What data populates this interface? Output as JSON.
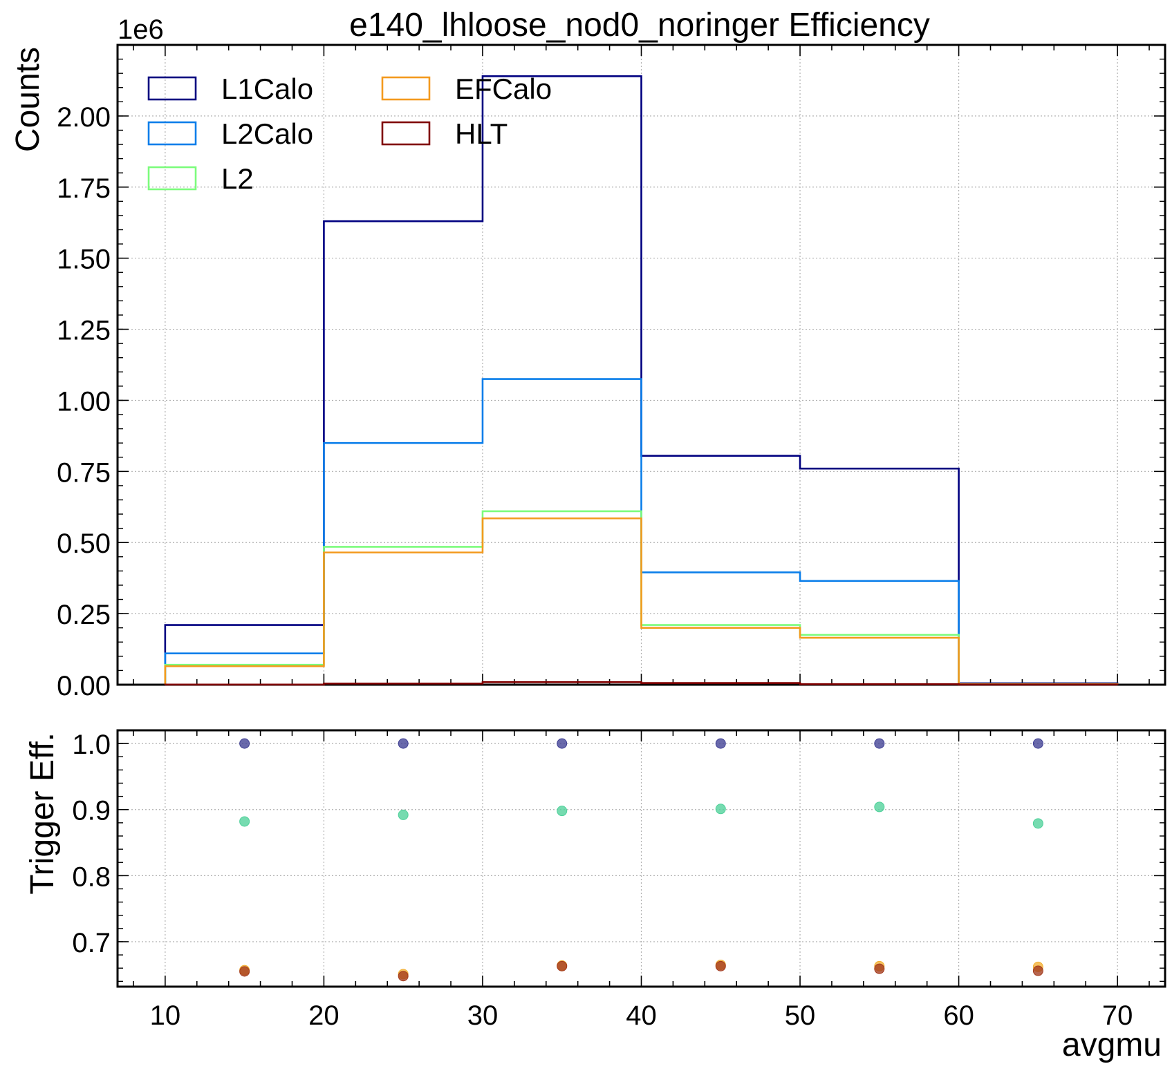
{
  "chart_data": [
    {
      "type": "histogram",
      "title": "e140_lhloose_nod0_noringer Efficiency",
      "ylabel": "Counts",
      "y_multiplier": "1e6",
      "xlim": [
        7,
        73
      ],
      "ylim": [
        0,
        2.25
      ],
      "y_ticks": [
        "0.00",
        "0.25",
        "0.50",
        "0.75",
        "1.00",
        "1.25",
        "1.50",
        "1.75",
        "2.00"
      ],
      "grid": true,
      "legend": "top-left, 2 columns",
      "bin_edges": [
        10,
        20,
        30,
        40,
        50,
        60,
        70
      ],
      "series": [
        {
          "name": "L1Calo",
          "color": "#000080",
          "values": [
            0.21,
            1.63,
            2.14,
            0.805,
            0.76,
            0.005
          ]
        },
        {
          "name": "L2Calo",
          "color": "#0a7eea",
          "values": [
            0.11,
            0.85,
            1.075,
            0.395,
            0.365,
            0.003
          ]
        },
        {
          "name": "L2",
          "color": "#7cfc7c",
          "values": [
            0.07,
            0.485,
            0.61,
            0.21,
            0.175,
            0.002
          ]
        },
        {
          "name": "EFCalo",
          "color": "#f39a1e",
          "values": [
            0.065,
            0.465,
            0.585,
            0.2,
            0.165,
            0.002
          ]
        },
        {
          "name": "HLT",
          "color": "#800000",
          "values": [
            0.0004,
            0.004,
            0.009,
            0.006,
            0.002,
            0.0005
          ]
        }
      ]
    },
    {
      "type": "scatter",
      "xlabel": "avgmu",
      "ylabel": "Trigger Eff.",
      "xlim": [
        7,
        73
      ],
      "ylim": [
        0.632,
        1.02
      ],
      "x_ticks": [
        "10",
        "20",
        "30",
        "40",
        "50",
        "60",
        "70"
      ],
      "y_ticks": [
        "0.7",
        "0.8",
        "0.9",
        "1.0"
      ],
      "grid": true,
      "x": [
        15,
        25,
        35,
        45,
        55,
        65
      ],
      "series": [
        {
          "color": "#3f3f94",
          "values": [
            1.0,
            1.0,
            1.0,
            1.0,
            1.0,
            1.0
          ]
        },
        {
          "color": "#4fd19a",
          "values": [
            0.882,
            0.892,
            0.898,
            0.901,
            0.904,
            0.879
          ]
        },
        {
          "color": "#f2b033",
          "values": [
            0.657,
            0.651,
            0.664,
            0.665,
            0.663,
            0.662
          ]
        },
        {
          "color": "#a33a1c",
          "values": [
            0.655,
            0.648,
            0.663,
            0.663,
            0.659,
            0.656
          ]
        }
      ]
    }
  ]
}
